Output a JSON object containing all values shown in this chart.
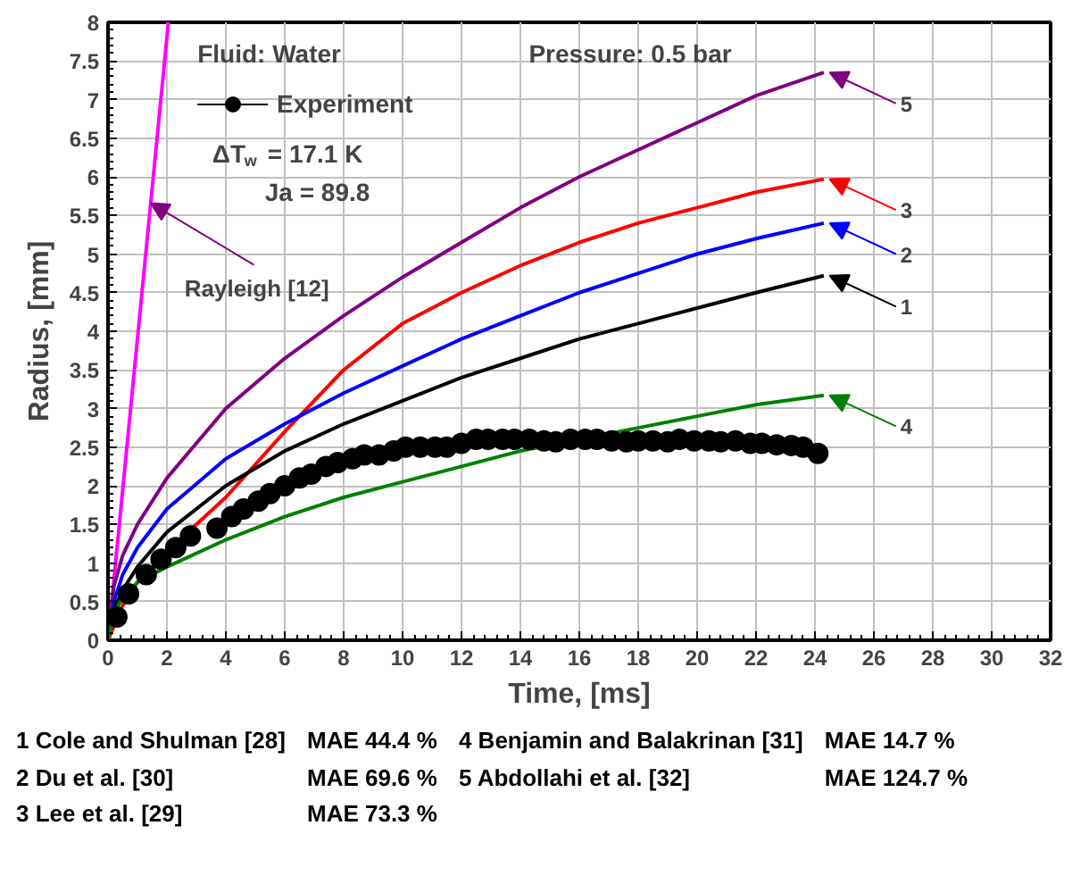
{
  "chart_data": {
    "type": "line",
    "xlabel": "Time, [ms]",
    "ylabel": "Radius, [mm]",
    "xlim": [
      0,
      32
    ],
    "ylim": [
      0,
      8
    ],
    "xticks": [
      0,
      2,
      4,
      6,
      8,
      10,
      12,
      14,
      16,
      18,
      20,
      22,
      24,
      26,
      28,
      30,
      32
    ],
    "yticks": [
      0,
      0.5,
      1,
      1.5,
      2,
      2.5,
      3,
      3.5,
      4,
      4.5,
      5,
      5.5,
      6,
      6.5,
      7,
      7.5,
      8
    ],
    "grid": true,
    "legend": "top left",
    "series": [
      {
        "name": "Experiment",
        "type": "scatter",
        "marker": "circle",
        "color": "#000000",
        "x": [
          0.3,
          0.7,
          1.3,
          1.8,
          2.3,
          2.8,
          3.7,
          4.2,
          4.6,
          5.1,
          5.5,
          6.0,
          6.5,
          6.9,
          7.4,
          7.8,
          8.3,
          8.7,
          9.2,
          9.7,
          10.1,
          10.6,
          11.1,
          11.5,
          12.0,
          12.5,
          12.9,
          13.4,
          13.8,
          14.3,
          14.8,
          15.2,
          15.7,
          16.2,
          16.6,
          17.1,
          17.6,
          18.0,
          18.5,
          19.0,
          19.4,
          19.9,
          20.4,
          20.8,
          21.3,
          21.8,
          22.2,
          22.7,
          23.2,
          23.6,
          24.1
        ],
        "values": [
          0.3,
          0.6,
          0.85,
          1.05,
          1.2,
          1.35,
          1.45,
          1.6,
          1.7,
          1.8,
          1.9,
          2.0,
          2.1,
          2.15,
          2.25,
          2.3,
          2.35,
          2.4,
          2.4,
          2.45,
          2.5,
          2.5,
          2.5,
          2.5,
          2.55,
          2.6,
          2.6,
          2.6,
          2.6,
          2.6,
          2.58,
          2.57,
          2.6,
          2.6,
          2.6,
          2.58,
          2.57,
          2.58,
          2.58,
          2.57,
          2.6,
          2.58,
          2.58,
          2.57,
          2.58,
          2.55,
          2.55,
          2.53,
          2.52,
          2.5,
          2.42
        ]
      },
      {
        "type": "line",
        "color": "#ff00ff",
        "x": [
          0,
          1.45,
          2.05
        ],
        "values": [
          0,
          5.66,
          8
        ]
      },
      {
        "name": "5",
        "color": "#800080",
        "x": [
          0,
          0.2,
          0.5,
          1,
          2,
          4,
          6,
          8,
          10,
          12,
          14,
          16,
          18,
          20,
          22,
          24.3
        ],
        "values": [
          0,
          0.7,
          1.1,
          1.5,
          2.1,
          3.0,
          3.65,
          4.2,
          4.7,
          5.15,
          5.6,
          6.0,
          6.35,
          6.7,
          7.05,
          7.35
        ]
      },
      {
        "name": "3",
        "color": "#ff0000",
        "x": [
          0,
          0.5,
          1,
          2,
          4,
          6,
          8,
          10,
          12,
          14,
          16,
          18,
          20,
          22,
          24.3
        ],
        "values": [
          0,
          0.45,
          0.75,
          1.15,
          1.85,
          2.7,
          3.5,
          4.1,
          4.5,
          4.85,
          5.15,
          5.4,
          5.6,
          5.8,
          5.97
        ]
      },
      {
        "name": "2",
        "color": "#0000ff",
        "x": [
          0,
          0.2,
          0.5,
          1,
          2,
          4,
          6,
          8,
          10,
          12,
          14,
          16,
          18,
          20,
          22,
          24.3
        ],
        "values": [
          0,
          0.5,
          0.85,
          1.2,
          1.7,
          2.35,
          2.8,
          3.2,
          3.55,
          3.9,
          4.2,
          4.5,
          4.75,
          5.0,
          5.2,
          5.4
        ]
      },
      {
        "name": "1",
        "color": "#000000",
        "x": [
          0,
          0.2,
          0.5,
          1,
          2,
          4,
          6,
          8,
          10,
          12,
          14,
          16,
          18,
          20,
          22,
          24.3
        ],
        "values": [
          0,
          0.4,
          0.65,
          0.95,
          1.4,
          2.0,
          2.45,
          2.8,
          3.1,
          3.4,
          3.65,
          3.9,
          4.1,
          4.3,
          4.5,
          4.72
        ]
      },
      {
        "name": "4",
        "color": "#008000",
        "x": [
          0,
          0.2,
          0.5,
          1,
          2,
          4,
          6,
          8,
          10,
          12,
          14,
          16,
          18,
          20,
          22,
          24.3
        ],
        "values": [
          0,
          0.35,
          0.55,
          0.75,
          0.95,
          1.3,
          1.6,
          1.85,
          2.05,
          2.25,
          2.45,
          2.6,
          2.75,
          2.9,
          3.05,
          3.17
        ]
      }
    ],
    "annotations": [
      "Fluid: Water",
      "Pressure: 0.5 bar",
      "ΔT$_{w}$ = 17.1 K",
      "Ja = 89.8",
      {
        "text": "Rayleigh [12]",
        "x": 1.45,
        "y": 5.66
      },
      "1 Cole and Shulman [28]",
      "MAE 44.4 %",
      "4 Benjamin and Balakrinan [31]",
      "MAE 14.7 %",
      "2 Du et al. [30]",
      "MAE 69.6 %",
      "5 Abdollahi et al. [32]",
      "MAE 124.7 %",
      "3 Lee et al. [29]",
      "MAE 73.3 %"
    ]
  }
}
